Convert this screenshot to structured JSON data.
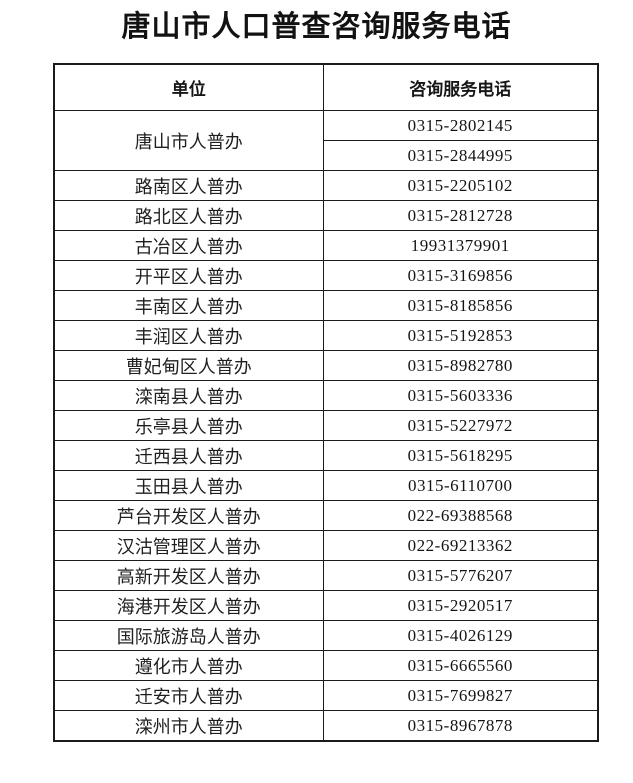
{
  "page": {
    "title": "唐山市人口普查咨询服务电话"
  },
  "table": {
    "headers": [
      "单位",
      "咨询服务电话"
    ],
    "rows": [
      {
        "unit": "唐山市人普办",
        "phones": [
          "0315-2802145",
          "0315-2844995"
        ]
      },
      {
        "unit": "路南区人普办",
        "phones": [
          "0315-2205102"
        ]
      },
      {
        "unit": "路北区人普办",
        "phones": [
          "0315-2812728"
        ]
      },
      {
        "unit": "古冶区人普办",
        "phones": [
          "19931379901"
        ]
      },
      {
        "unit": "开平区人普办",
        "phones": [
          "0315-3169856"
        ]
      },
      {
        "unit": "丰南区人普办",
        "phones": [
          "0315-8185856"
        ]
      },
      {
        "unit": "丰润区人普办",
        "phones": [
          "0315-5192853"
        ]
      },
      {
        "unit": "曹妃甸区人普办",
        "phones": [
          "0315-8982780"
        ]
      },
      {
        "unit": "滦南县人普办",
        "phones": [
          "0315-5603336"
        ]
      },
      {
        "unit": "乐亭县人普办",
        "phones": [
          "0315-5227972"
        ]
      },
      {
        "unit": "迁西县人普办",
        "phones": [
          "0315-5618295"
        ]
      },
      {
        "unit": "玉田县人普办",
        "phones": [
          "0315-6110700"
        ]
      },
      {
        "unit": "芦台开发区人普办",
        "phones": [
          "022-69388568"
        ]
      },
      {
        "unit": "汉沽管理区人普办",
        "phones": [
          "022-69213362"
        ]
      },
      {
        "unit": "高新开发区人普办",
        "phones": [
          "0315-5776207"
        ]
      },
      {
        "unit": "海港开发区人普办",
        "phones": [
          "0315-2920517"
        ]
      },
      {
        "unit": "国际旅游岛人普办",
        "phones": [
          "0315-4026129"
        ]
      },
      {
        "unit": "遵化市人普办",
        "phones": [
          "0315-6665560"
        ]
      },
      {
        "unit": "迁安市人普办",
        "phones": [
          "0315-7699827"
        ]
      },
      {
        "unit": "滦州市人普办",
        "phones": [
          "0315-8967878"
        ]
      }
    ]
  },
  "colors": {
    "text": "#1a1a1a",
    "border": "#1b1b1b",
    "background": "#ffffff"
  }
}
